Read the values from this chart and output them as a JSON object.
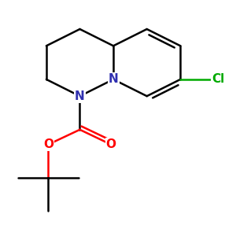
{
  "background_color": "#ffffff",
  "atom_colors": {
    "N": "#3030b0",
    "O": "#ff0000",
    "Cl": "#00aa00",
    "C": "#000000"
  },
  "bond_color": "#000000",
  "bond_width": 1.8,
  "font_size_atoms": 11
}
